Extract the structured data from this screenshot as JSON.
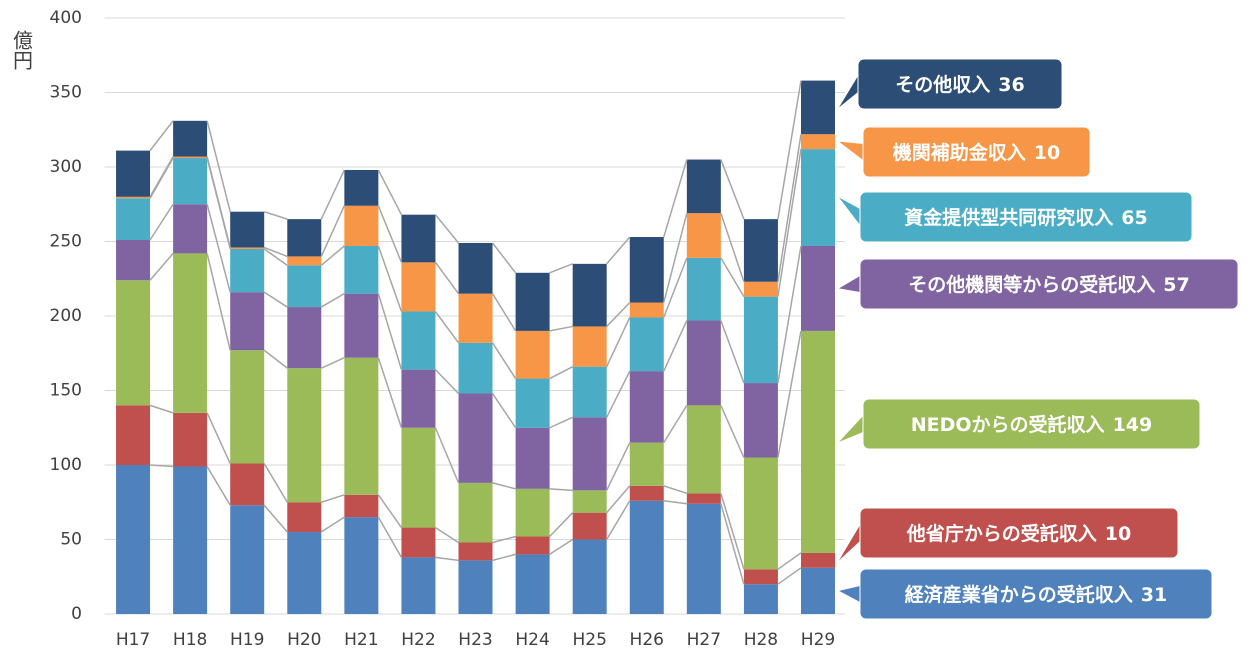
{
  "chart_data": {
    "type": "stacked_bar",
    "y_label": "億円",
    "categories": [
      "H17",
      "H18",
      "H19",
      "H20",
      "H21",
      "H22",
      "H23",
      "H24",
      "H25",
      "H26",
      "H27",
      "H28",
      "H29"
    ],
    "ylim": [
      0,
      400
    ],
    "yticks": [
      0,
      50,
      100,
      150,
      200,
      250,
      300,
      350,
      400
    ],
    "grid": true,
    "series": [
      {
        "name": "経済産業省からの受託収入",
        "color": "#4f81bd",
        "values": [
          100,
          99,
          73,
          55,
          65,
          38,
          36,
          40,
          50,
          76,
          74,
          20,
          31
        ]
      },
      {
        "name": "他省庁からの受託収入",
        "color": "#c0504d",
        "values": [
          40,
          36,
          28,
          20,
          15,
          20,
          12,
          12,
          18,
          10,
          7,
          10,
          10
        ]
      },
      {
        "name": "NEDOからの受託収入",
        "color": "#9bbb59",
        "values": [
          84,
          107,
          76,
          90,
          92,
          67,
          40,
          32,
          15,
          29,
          59,
          75,
          149
        ]
      },
      {
        "name": "その他機関等からの受託収入",
        "color": "#8064a2",
        "values": [
          27,
          33,
          39,
          41,
          43,
          39,
          60,
          41,
          49,
          48,
          57,
          50,
          57
        ]
      },
      {
        "name": "資金提供型共同研究収入",
        "color": "#4bacc6",
        "values": [
          28,
          31,
          29,
          28,
          32,
          39,
          34,
          33,
          34,
          36,
          42,
          58,
          65
        ]
      },
      {
        "name": "機関補助金収入",
        "color": "#f79646",
        "values": [
          1,
          1,
          1,
          6,
          27,
          33,
          33,
          32,
          27,
          10,
          30,
          10,
          10
        ]
      },
      {
        "name": "その他収入",
        "color": "#2c4d75",
        "values": [
          31,
          24,
          24,
          25,
          24,
          32,
          34,
          39,
          42,
          44,
          36,
          42,
          36
        ]
      }
    ]
  }
}
